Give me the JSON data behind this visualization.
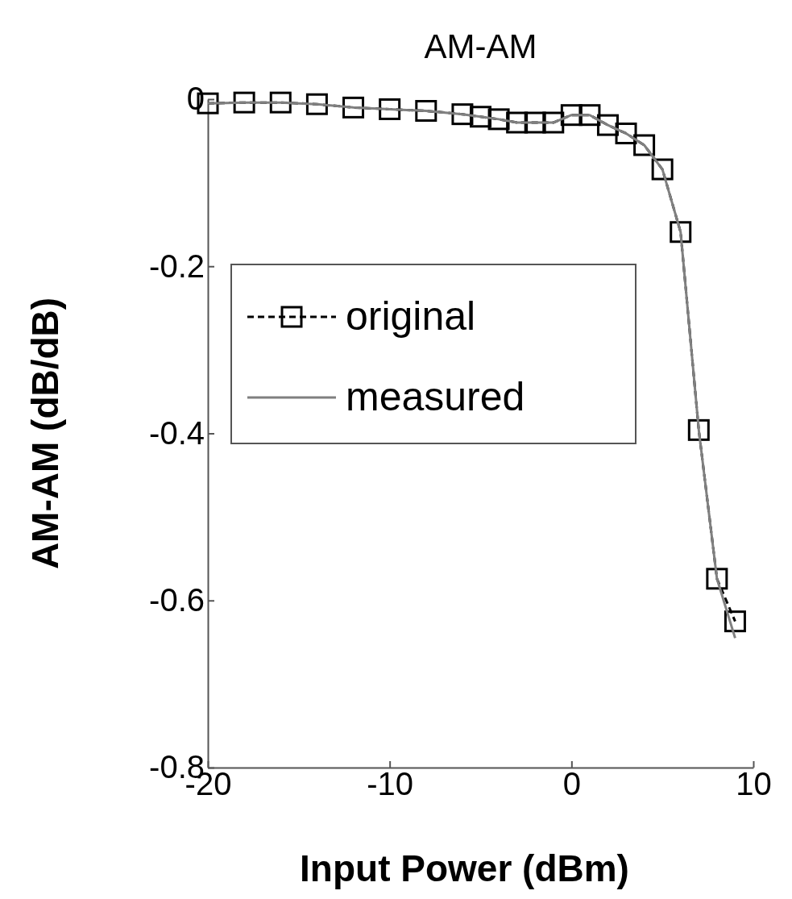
{
  "chart_data": {
    "type": "line",
    "title": "AM-AM",
    "xlabel": "Input Power (dBm)",
    "ylabel": "AM-AM (dB/dB)",
    "xlim": [
      -20,
      10
    ],
    "ylim": [
      -0.8,
      0
    ],
    "xticks": [
      -20,
      -10,
      0,
      10
    ],
    "yticks": [
      {
        "value": -0.8,
        "label": "-0.8"
      },
      {
        "value": -0.6,
        "label": "-0.6"
      },
      {
        "value": -0.4,
        "label": "-0.4"
      },
      {
        "value": -0.2,
        "label": "-0.2"
      },
      {
        "value": 0,
        "label": "0"
      }
    ],
    "grid": false,
    "legend": "left",
    "series": [
      {
        "name": "original",
        "color": "#000000",
        "marker": "square",
        "line_style": "dashed",
        "x": [
          -20,
          -18,
          -16,
          -14,
          -12,
          -10,
          -8,
          -6,
          -5,
          -4,
          -3,
          -2,
          -1,
          0,
          1,
          2,
          3,
          4,
          5,
          6,
          7,
          8,
          9
        ],
        "values": [
          -0.005,
          -0.004,
          -0.004,
          -0.006,
          -0.01,
          -0.012,
          -0.014,
          -0.018,
          -0.021,
          -0.024,
          -0.028,
          -0.028,
          -0.028,
          -0.019,
          -0.019,
          -0.031,
          -0.041,
          -0.055,
          -0.084,
          -0.159,
          -0.396,
          -0.574,
          -0.625
        ]
      },
      {
        "name": "measured",
        "color": "#808080",
        "marker": "none",
        "line_style": "solid",
        "x": [
          -20,
          -18,
          -16,
          -14,
          -12,
          -10,
          -8,
          -6,
          -5,
          -4,
          -3,
          -2,
          -1,
          0,
          1,
          2,
          3,
          4,
          5,
          6,
          7,
          8,
          9
        ],
        "values": [
          -0.005,
          -0.004,
          -0.004,
          -0.006,
          -0.01,
          -0.012,
          -0.014,
          -0.018,
          -0.021,
          -0.024,
          -0.028,
          -0.028,
          -0.028,
          -0.019,
          -0.019,
          -0.031,
          -0.041,
          -0.055,
          -0.084,
          -0.159,
          -0.396,
          -0.574,
          -0.645
        ]
      }
    ]
  }
}
